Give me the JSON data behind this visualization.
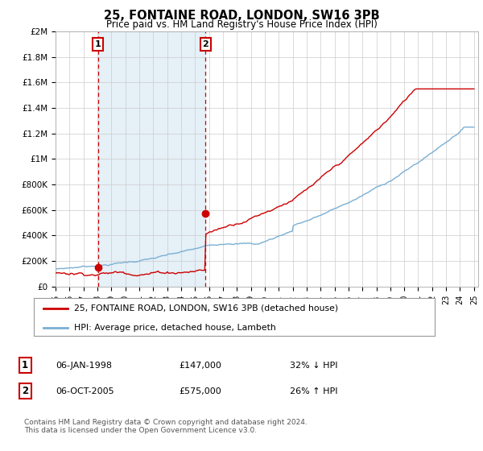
{
  "title": "25, FONTAINE ROAD, LONDON, SW16 3PB",
  "subtitle": "Price paid vs. HM Land Registry's House Price Index (HPI)",
  "legend_line1": "25, FONTAINE ROAD, LONDON, SW16 3PB (detached house)",
  "legend_line2": "HPI: Average price, detached house, Lambeth",
  "annotation1_label": "1",
  "annotation1_date": "06-JAN-1998",
  "annotation1_price": "£147,000",
  "annotation1_hpi": "32% ↓ HPI",
  "annotation2_label": "2",
  "annotation2_date": "06-OCT-2005",
  "annotation2_price": "£575,000",
  "annotation2_hpi": "26% ↑ HPI",
  "footer": "Contains HM Land Registry data © Crown copyright and database right 2024.\nThis data is licensed under the Open Government Licence v3.0.",
  "hpi_color": "#7bafd4",
  "hpi_fill_color": "#daeaf5",
  "price_color": "#cc0000",
  "dashed_color": "#cc0000",
  "marker_color": "#cc0000",
  "annotation_box_color": "#cc0000",
  "background_color": "#ffffff",
  "grid_color": "#cccccc",
  "ylim": [
    0,
    2000000
  ],
  "yticks": [
    0,
    200000,
    400000,
    600000,
    800000,
    1000000,
    1200000,
    1400000,
    1600000,
    1800000,
    2000000
  ],
  "ytick_labels": [
    "£0",
    "£200K",
    "£400K",
    "£600K",
    "£800K",
    "£1M",
    "£1.2M",
    "£1.4M",
    "£1.6M",
    "£1.8M",
    "£2M"
  ],
  "sale1_x": 1998.04,
  "sale1_y": 147000,
  "sale2_x": 2005.75,
  "sale2_y": 575000,
  "xmin": 1995,
  "xmax": 2025.3
}
